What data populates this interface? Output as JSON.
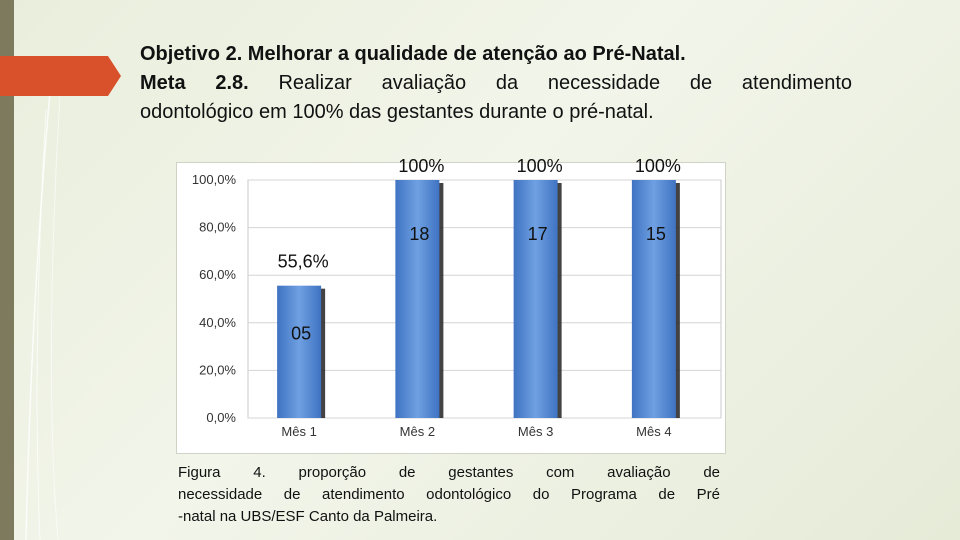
{
  "title": {
    "line1": "Objetivo 2. Melhorar a qualidade de atenção ao Pré-Natal.",
    "line2_bold": "Meta 2.8.",
    "line2_rest": " Realizar avaliação da necessidade de atendimento",
    "line3": "odontológico em 100% das gestantes durante o pré-natal."
  },
  "caption": {
    "line1": "Figura 4. proporção de gestantes com avaliação de",
    "line2": "necessidade de atendimento odontológico do Programa de Pré",
    "line3": "-natal na UBS/ESF Canto da Palmeira."
  },
  "colors": {
    "bar": "#5b8fd6",
    "bar_dark": "#3c6fbd",
    "accent": "#d9512b",
    "side": "#7d7a5e"
  },
  "chart_data": {
    "type": "bar",
    "categories": [
      "Mês 1",
      "Mês 2",
      "Mês 3",
      "Mês 4"
    ],
    "values": [
      55.6,
      100,
      100,
      100
    ],
    "percent_labels": [
      "55,6%",
      "100%",
      "100%",
      "100%"
    ],
    "count_labels": [
      "05",
      "18",
      "17",
      "15"
    ],
    "yticks": [
      "0,0%",
      "20,0%",
      "40,0%",
      "60,0%",
      "80,0%",
      "100,0%"
    ],
    "ylim": [
      0,
      100
    ],
    "grid": true
  }
}
